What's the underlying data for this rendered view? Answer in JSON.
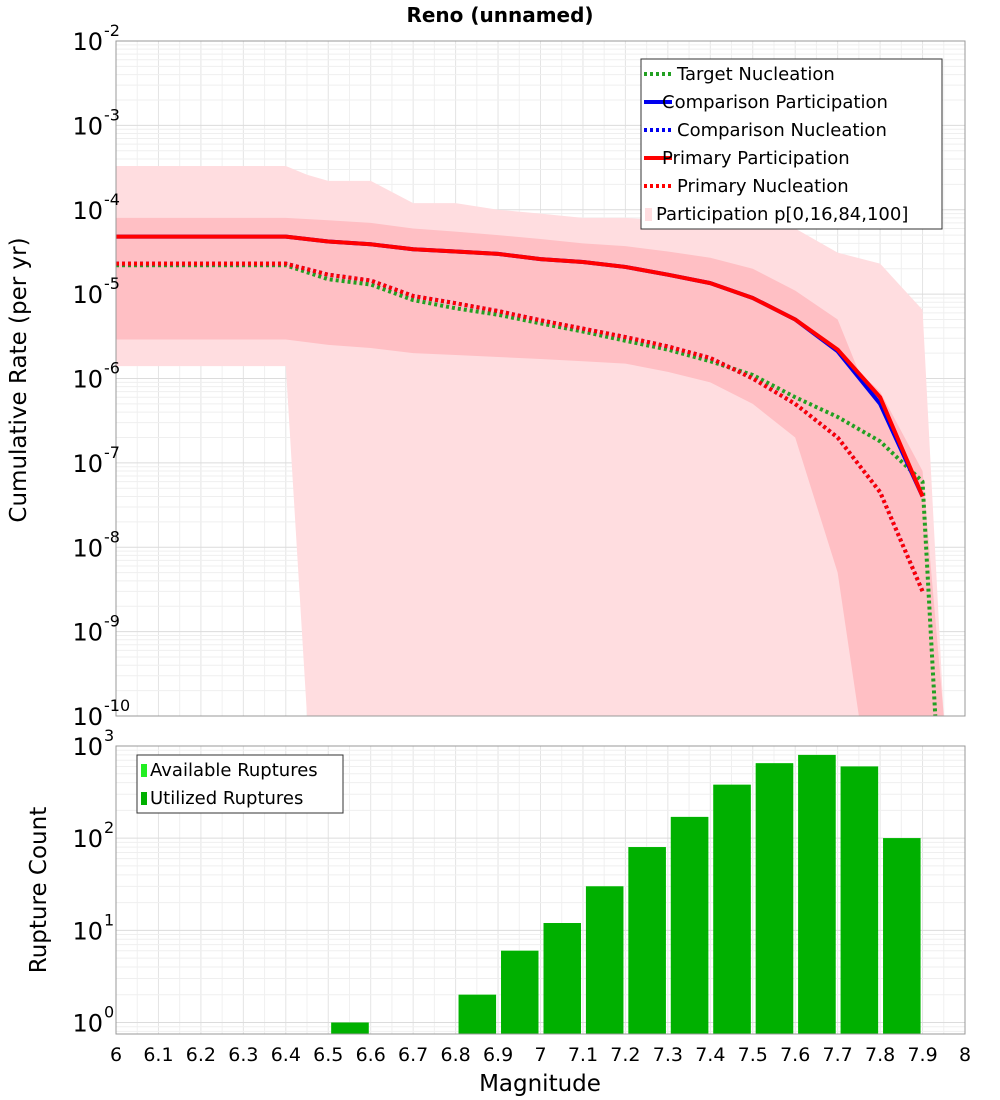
{
  "chart_data": [
    {
      "type": "line",
      "title": "Reno (unnamed)",
      "xlabel": "",
      "ylabel": "Cumulative Rate (per yr)",
      "xlim": [
        6,
        8
      ],
      "ylim": [
        1e-10,
        0.01
      ],
      "yscale": "log",
      "ytick_exponents": [
        -10,
        -9,
        -8,
        -7,
        -6,
        -5,
        -4,
        -3,
        -2
      ],
      "grid": true,
      "legend_position": "top-right",
      "legend_entries": [
        "Target Nucleation",
        "Comparison Participation",
        "Comparison Nucleation",
        "Primary Participation",
        "Primary Nucleation",
        "Participation p[0,16,84,100]"
      ],
      "colors": {
        "target": "#22a022",
        "comparison": "#0000ee",
        "primary": "#ff0000",
        "band_outer": "#ffdde0",
        "band_inner": "#ffbfc4"
      },
      "series": [
        {
          "name": "Target Nucleation",
          "style": "dotted",
          "color": "#22a022",
          "x": [
            6.0,
            6.1,
            6.2,
            6.3,
            6.4,
            6.5,
            6.6,
            6.7,
            6.8,
            6.9,
            7.0,
            7.1,
            7.2,
            7.3,
            7.4,
            7.5,
            7.6,
            7.7,
            7.8,
            7.9,
            7.93
          ],
          "y": [
            2.2e-05,
            2.2e-05,
            2.2e-05,
            2.2e-05,
            2.2e-05,
            1.5e-05,
            1.3e-05,
            8.5e-06,
            6.8e-06,
            5.7e-06,
            4.5e-06,
            3.6e-06,
            2.8e-06,
            2.2e-06,
            1.6e-06,
            1.1e-06,
            6e-07,
            3.5e-07,
            1.8e-07,
            6e-08,
            1e-10
          ]
        },
        {
          "name": "Comparison Participation",
          "style": "solid",
          "color": "#0000ee",
          "x": [
            6.0,
            6.1,
            6.2,
            6.3,
            6.4,
            6.5,
            6.6,
            6.7,
            6.8,
            6.9,
            7.0,
            7.1,
            7.2,
            7.3,
            7.4,
            7.5,
            7.6,
            7.7,
            7.8,
            7.9
          ],
          "y": [
            4.8e-05,
            4.8e-05,
            4.8e-05,
            4.8e-05,
            4.8e-05,
            4.2e-05,
            3.9e-05,
            3.4e-05,
            3.2e-05,
            3e-05,
            2.6e-05,
            2.4e-05,
            2.1e-05,
            1.7e-05,
            1.35e-05,
            9e-06,
            5e-06,
            2.1e-06,
            5e-07,
            4e-08
          ]
        },
        {
          "name": "Comparison Nucleation",
          "style": "dotted",
          "color": "#0000ee",
          "x": [
            6.0,
            6.1,
            6.2,
            6.3,
            6.4,
            6.5,
            6.6,
            6.7,
            6.8,
            6.9,
            7.0,
            7.1,
            7.2,
            7.3,
            7.4,
            7.5,
            7.6,
            7.7,
            7.8,
            7.9
          ],
          "y": [
            2.3e-05,
            2.3e-05,
            2.3e-05,
            2.3e-05,
            2.3e-05,
            1.7e-05,
            1.45e-05,
            9.5e-06,
            7.8e-06,
            6.3e-06,
            4.9e-06,
            3.9e-06,
            3.1e-06,
            2.4e-06,
            1.75e-06,
            1e-06,
            5e-07,
            2e-07,
            4.5e-08,
            3e-09
          ]
        },
        {
          "name": "Primary Participation",
          "style": "solid",
          "color": "#ff0000",
          "x": [
            6.0,
            6.1,
            6.2,
            6.3,
            6.4,
            6.5,
            6.6,
            6.7,
            6.8,
            6.9,
            7.0,
            7.1,
            7.2,
            7.3,
            7.4,
            7.5,
            7.6,
            7.7,
            7.8,
            7.9
          ],
          "y": [
            4.8e-05,
            4.8e-05,
            4.8e-05,
            4.8e-05,
            4.8e-05,
            4.2e-05,
            3.9e-05,
            3.4e-05,
            3.2e-05,
            3e-05,
            2.6e-05,
            2.4e-05,
            2.1e-05,
            1.7e-05,
            1.35e-05,
            9e-06,
            5e-06,
            2.2e-06,
            6e-07,
            4e-08
          ]
        },
        {
          "name": "Primary Nucleation",
          "style": "dotted",
          "color": "#ff0000",
          "x": [
            6.0,
            6.1,
            6.2,
            6.3,
            6.4,
            6.5,
            6.6,
            6.7,
            6.8,
            6.9,
            7.0,
            7.1,
            7.2,
            7.3,
            7.4,
            7.5,
            7.6,
            7.7,
            7.8,
            7.9
          ],
          "y": [
            2.3e-05,
            2.3e-05,
            2.3e-05,
            2.3e-05,
            2.3e-05,
            1.7e-05,
            1.45e-05,
            9.5e-06,
            7.8e-06,
            6.3e-06,
            4.9e-06,
            3.9e-06,
            3.1e-06,
            2.4e-06,
            1.75e-06,
            1e-06,
            5e-07,
            2e-07,
            4.5e-08,
            3e-09
          ]
        }
      ],
      "bands": [
        {
          "name": "p0-p100",
          "x": [
            6.0,
            6.4,
            6.45,
            6.5,
            6.6,
            6.7,
            6.8,
            6.9,
            7.0,
            7.1,
            7.2,
            7.3,
            7.4,
            7.5,
            7.6,
            7.7,
            7.8,
            7.9,
            7.95
          ],
          "upper": [
            0.00033,
            0.00033,
            0.00026,
            0.00022,
            0.00022,
            0.00012,
            0.00012,
            0.0001,
            9e-05,
            8e-05,
            8e-05,
            7.5e-05,
            7e-05,
            7e-05,
            6e-05,
            3.1e-05,
            2.3e-05,
            6.5e-06,
            1e-10
          ],
          "lower": [
            1.4e-06,
            1.4e-06,
            1e-10,
            1e-10,
            1e-10,
            1e-10,
            1e-10,
            1e-10,
            1e-10,
            1e-10,
            1e-10,
            1e-10,
            1e-10,
            1e-10,
            1e-10,
            1e-10,
            1e-10,
            1e-10,
            1e-10
          ]
        },
        {
          "name": "p16-p84",
          "x": [
            6.0,
            6.4,
            6.5,
            6.6,
            6.7,
            6.8,
            6.9,
            7.0,
            7.1,
            7.2,
            7.3,
            7.4,
            7.5,
            7.6,
            7.7,
            7.75,
            7.8,
            7.9,
            7.95
          ],
          "upper": [
            8e-05,
            8e-05,
            7.5e-05,
            7e-05,
            6e-05,
            5.5e-05,
            5e-05,
            4.5e-05,
            4e-05,
            3.7e-05,
            3.2e-05,
            2.7e-05,
            2e-05,
            1.1e-05,
            5e-06,
            1.2e-06,
            7e-07,
            8e-08,
            1e-10
          ],
          "lower": [
            2.9e-06,
            2.9e-06,
            2.5e-06,
            2.3e-06,
            2e-06,
            1.9e-06,
            1.8e-06,
            1.7e-06,
            1.6e-06,
            1.5e-06,
            1.2e-06,
            9e-07,
            5e-07,
            2e-07,
            5e-09,
            1e-10,
            1e-10,
            1e-10,
            1e-10
          ]
        }
      ]
    },
    {
      "type": "bar",
      "title": "",
      "xlabel": "Magnitude",
      "ylabel": "Rupture Count",
      "xlim": [
        6,
        8
      ],
      "ylim": [
        0.75,
        1000
      ],
      "yscale": "log",
      "ytick_exponents": [
        0,
        1,
        2,
        3
      ],
      "xticks": [
        "6",
        "6.1",
        "6.2",
        "6.3",
        "6.4",
        "6.5",
        "6.6",
        "6.7",
        "6.8",
        "6.9",
        "7",
        "7.1",
        "7.2",
        "7.3",
        "7.4",
        "7.5",
        "7.6",
        "7.7",
        "7.8",
        "7.9",
        "8"
      ],
      "grid": true,
      "legend_position": "top-left",
      "legend_entries": [
        "Available Ruptures",
        "Utilized Ruptures"
      ],
      "colors": {
        "available": "#22ee22",
        "utilized": "#00b000"
      },
      "bar_left_edges": [
        6.5,
        6.8,
        6.9,
        7.0,
        7.1,
        7.2,
        7.3,
        7.4,
        7.5,
        7.6,
        7.7,
        7.8
      ],
      "bar_width": 0.1,
      "series": [
        {
          "name": "Available Ruptures",
          "values": [
            1,
            2,
            6,
            12,
            30,
            80,
            170,
            380,
            650,
            800,
            600,
            100
          ]
        },
        {
          "name": "Utilized Ruptures",
          "values": [
            1,
            2,
            6,
            12,
            30,
            80,
            170,
            380,
            650,
            800,
            600,
            100
          ]
        }
      ]
    }
  ]
}
